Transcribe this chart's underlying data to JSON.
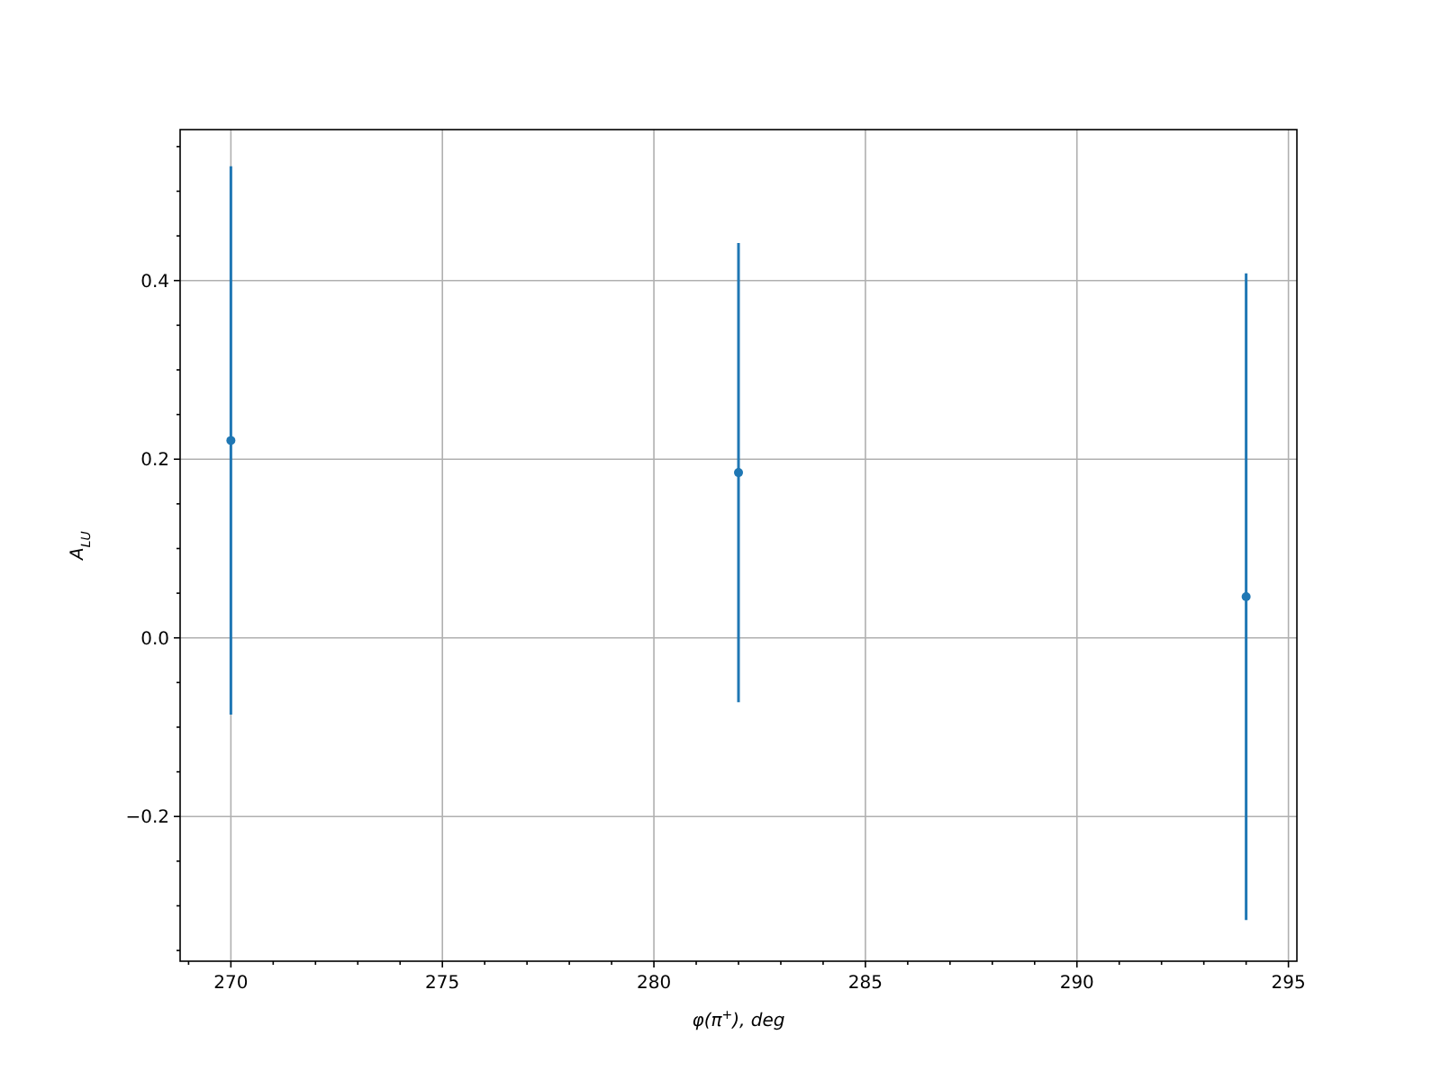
{
  "chart_data": {
    "type": "scatter",
    "xlabel": "φ(π$^{+}$), deg",
    "ylabel": "A$_{LU}$",
    "x": [
      270,
      282,
      294
    ],
    "values": [
      0.221,
      0.185,
      0.046
    ],
    "errors": [
      0.307,
      0.257,
      0.362
    ],
    "color": "#1f77b4",
    "marker": "circle",
    "grid": true,
    "xlim": [
      268.8,
      295.2
    ],
    "ylim": [
      -0.362,
      0.569
    ],
    "xticks": [
      {
        "value": 269,
        "label": null
      },
      {
        "value": 270,
        "label": "270"
      },
      {
        "value": 271,
        "label": null
      },
      {
        "value": 272,
        "label": null
      },
      {
        "value": 273,
        "label": null
      },
      {
        "value": 274,
        "label": null
      },
      {
        "value": 275,
        "label": "275"
      },
      {
        "value": 276,
        "label": null
      },
      {
        "value": 277,
        "label": null
      },
      {
        "value": 278,
        "label": null
      },
      {
        "value": 279,
        "label": null
      },
      {
        "value": 280,
        "label": "280"
      },
      {
        "value": 281,
        "label": null
      },
      {
        "value": 282,
        "label": null
      },
      {
        "value": 283,
        "label": null
      },
      {
        "value": 284,
        "label": null
      },
      {
        "value": 285,
        "label": "285"
      },
      {
        "value": 286,
        "label": null
      },
      {
        "value": 287,
        "label": null
      },
      {
        "value": 288,
        "label": null
      },
      {
        "value": 289,
        "label": null
      },
      {
        "value": 290,
        "label": "290"
      },
      {
        "value": 291,
        "label": null
      },
      {
        "value": 292,
        "label": null
      },
      {
        "value": 293,
        "label": null
      },
      {
        "value": 294,
        "label": null
      },
      {
        "value": 295,
        "label": "295"
      }
    ],
    "yticks": [
      {
        "value": -0.35,
        "label": null
      },
      {
        "value": -0.3,
        "label": null
      },
      {
        "value": -0.25,
        "label": null
      },
      {
        "value": -0.2,
        "label": "−0.2"
      },
      {
        "value": -0.15,
        "label": null
      },
      {
        "value": -0.1,
        "label": null
      },
      {
        "value": -0.05,
        "label": null
      },
      {
        "value": 0,
        "label": "0.0"
      },
      {
        "value": 0.05,
        "label": null
      },
      {
        "value": 0.1,
        "label": null
      },
      {
        "value": 0.15,
        "label": null
      },
      {
        "value": 0.2,
        "label": "0.2"
      },
      {
        "value": 0.25,
        "label": null
      },
      {
        "value": 0.3,
        "label": null
      },
      {
        "value": 0.35,
        "label": null
      },
      {
        "value": 0.4,
        "label": "0.4"
      },
      {
        "value": 0.45,
        "label": null
      },
      {
        "value": 0.5,
        "label": null
      },
      {
        "value": 0.55,
        "label": null
      }
    ]
  }
}
